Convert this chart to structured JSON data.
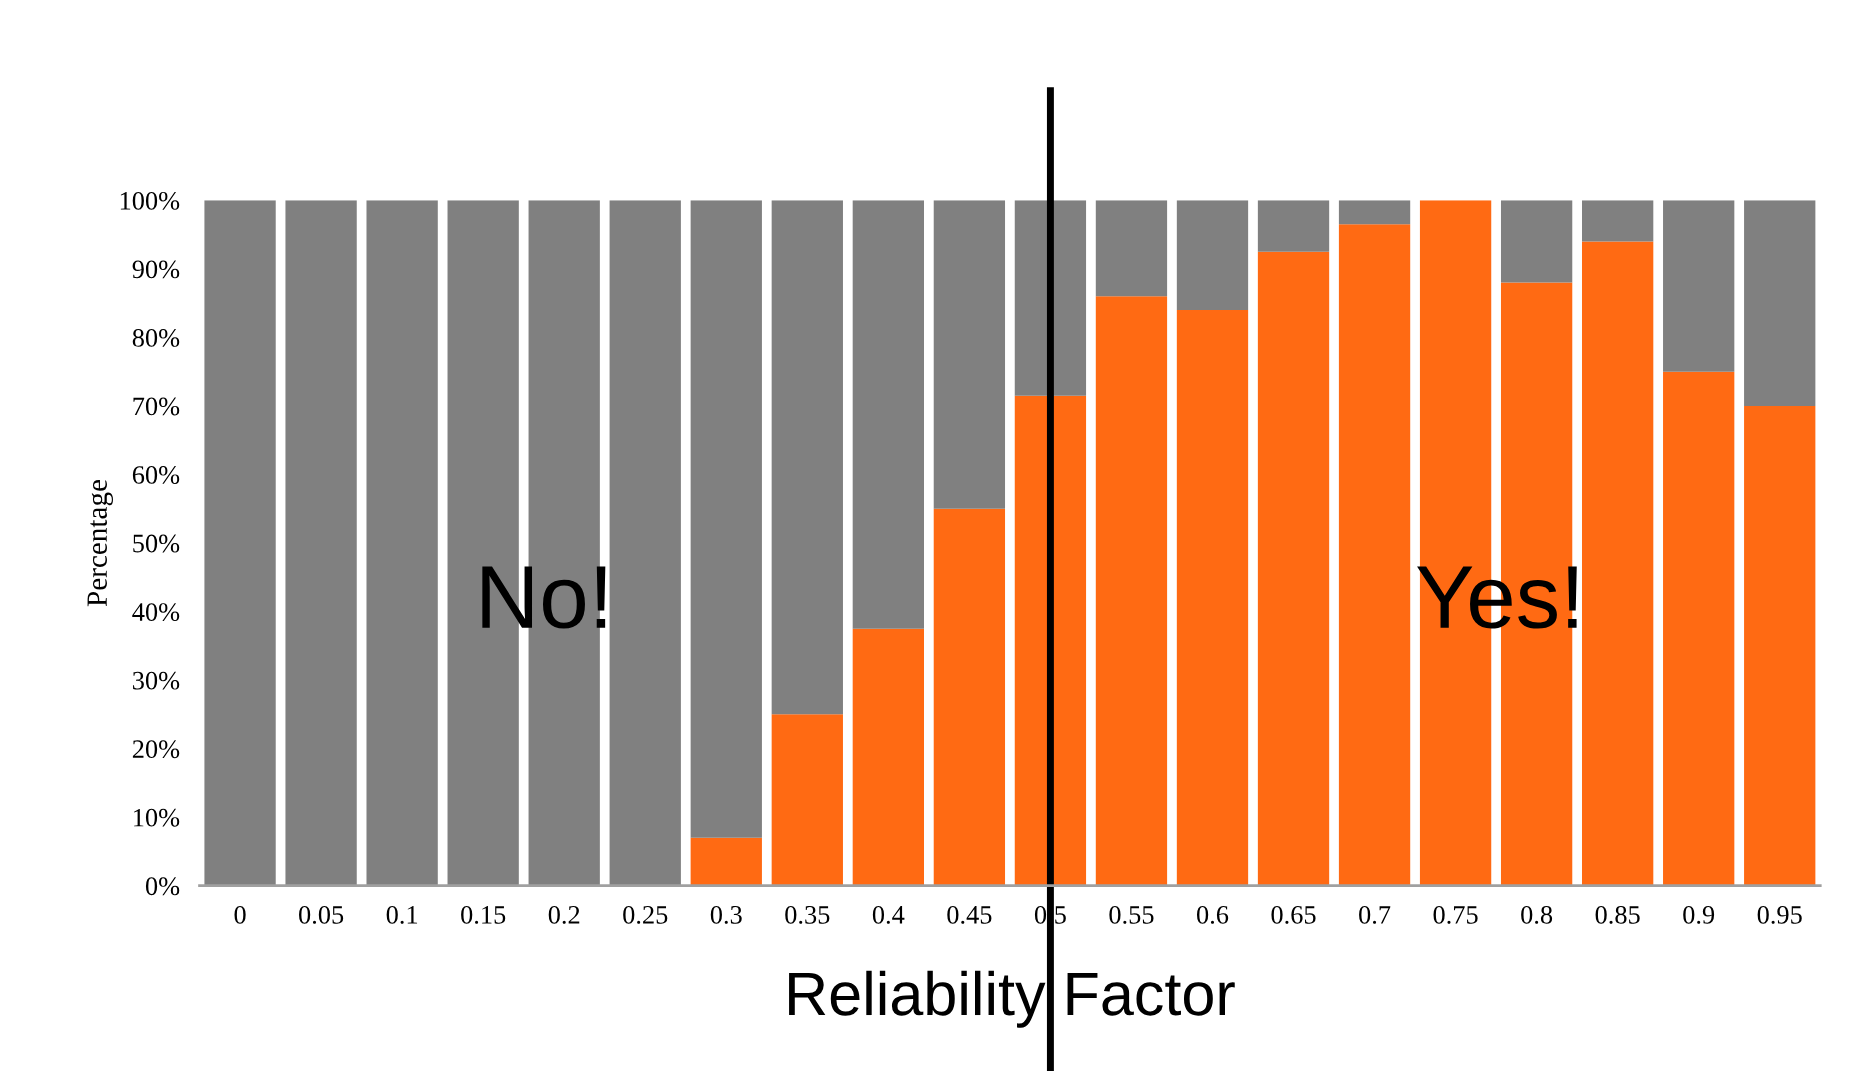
{
  "chart_data": {
    "type": "bar",
    "stacked": true,
    "xlabel": "Reliability Factor",
    "ylabel": "Percentage",
    "categories": [
      "0",
      "0.05",
      "0.1",
      "0.15",
      "0.2",
      "0.25",
      "0.3",
      "0.35",
      "0.4",
      "0.45",
      "0.5",
      "0.55",
      "0.6",
      "0.65",
      "0.7",
      "0.75",
      "0.8",
      "0.85",
      "0.9",
      "0.95"
    ],
    "series": [
      {
        "color": "#ff6a13",
        "values": [
          0,
          0,
          0,
          0,
          0,
          0,
          7,
          25,
          37.5,
          55,
          71.5,
          86,
          84,
          92.5,
          96.5,
          100,
          88,
          94,
          75,
          70
        ]
      },
      {
        "color": "#808080",
        "values": [
          100,
          100,
          100,
          100,
          100,
          100,
          93,
          75,
          62.5,
          45,
          28.5,
          14,
          16,
          7.5,
          3.5,
          0,
          12,
          6,
          25,
          30
        ]
      }
    ],
    "ylim": [
      0,
      100
    ],
    "yticks": [
      {
        "value": 0,
        "label": "0%"
      },
      {
        "value": 10,
        "label": "10%"
      },
      {
        "value": 20,
        "label": "20%"
      },
      {
        "value": 30,
        "label": "30%"
      },
      {
        "value": 40,
        "label": "40%"
      },
      {
        "value": 50,
        "label": "50%"
      },
      {
        "value": 60,
        "label": "60%"
      },
      {
        "value": 70,
        "label": "70%"
      },
      {
        "value": 80,
        "label": "80%"
      },
      {
        "value": 90,
        "label": "90%"
      },
      {
        "value": 100,
        "label": "100%"
      }
    ],
    "ref_lines": [
      {
        "axis": "x",
        "value": "0.5",
        "color": "#000000"
      }
    ],
    "annotations": [
      "No!",
      "Yes!"
    ],
    "grid": false,
    "legend": false
  }
}
